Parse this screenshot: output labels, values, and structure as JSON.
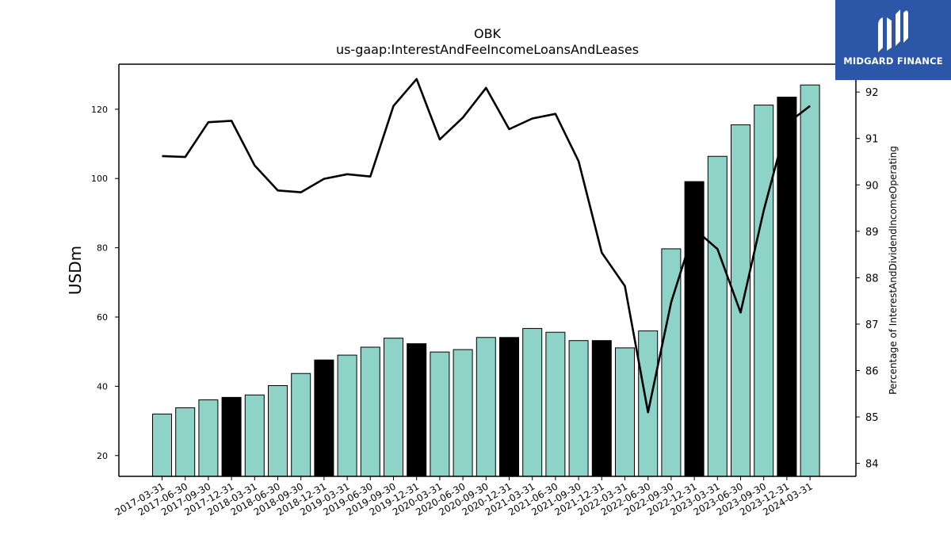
{
  "chart_data": {
    "type": "bar+line",
    "title": "OBK",
    "subtitle": "us-gaap:InterestAndFeeIncomeLoansAndLeases",
    "ylabel": "USDm",
    "y2label": "Percentage of InterestAndDividendIncomeOperating",
    "categories": [
      "2017-03-31",
      "2017-06-30",
      "2017-09-30",
      "2017-12-31",
      "2018-03-31",
      "2018-06-30",
      "2018-09-30",
      "2018-12-31",
      "2019-03-31",
      "2019-06-30",
      "2019-09-30",
      "2019-12-31",
      "2020-03-31",
      "2020-06-30",
      "2020-09-30",
      "2020-12-31",
      "2021-03-31",
      "2021-06-30",
      "2021-09-30",
      "2021-12-31",
      "2022-03-31",
      "2022-06-30",
      "2022-09-30",
      "2022-12-31",
      "2023-03-31",
      "2023-06-30",
      "2023-09-30",
      "2023-12-31",
      "2024-03-31"
    ],
    "bars": {
      "values": [
        32.0,
        33.8,
        36.1,
        36.8,
        37.5,
        40.2,
        43.7,
        47.6,
        49.0,
        51.3,
        53.9,
        52.3,
        49.9,
        50.6,
        54.1,
        54.1,
        56.7,
        55.6,
        53.2,
        53.2,
        51.1,
        56.0,
        79.7,
        99.1,
        106.4,
        115.5,
        121.2,
        123.5,
        127.0
      ],
      "highlight": [
        false,
        false,
        false,
        true,
        false,
        false,
        false,
        true,
        false,
        false,
        false,
        true,
        false,
        false,
        false,
        true,
        false,
        false,
        false,
        true,
        false,
        false,
        false,
        true,
        false,
        false,
        false,
        true,
        false
      ],
      "ylim": [
        14,
        133
      ],
      "yticks": [
        20,
        40,
        60,
        80,
        100,
        120
      ]
    },
    "line": {
      "values": [
        90.62,
        90.6,
        91.35,
        91.38,
        90.42,
        89.88,
        89.84,
        90.13,
        90.23,
        90.18,
        91.7,
        92.28,
        90.98,
        91.45,
        92.09,
        91.2,
        91.43,
        91.53,
        90.51,
        88.54,
        87.82,
        85.1,
        87.47,
        89.05,
        88.62,
        87.25,
        89.45,
        91.32,
        91.7
      ],
      "ylim": [
        83.72,
        92.6
      ],
      "yticks": [
        84,
        85,
        86,
        87,
        88,
        89,
        90,
        91,
        92
      ]
    },
    "colors": {
      "bar": "#8dd3c7",
      "bar_highlight": "#000000",
      "line": "#000000"
    },
    "grid": false,
    "legend": "none"
  },
  "logo": {
    "text": "MIDGARD FINANCE"
  }
}
